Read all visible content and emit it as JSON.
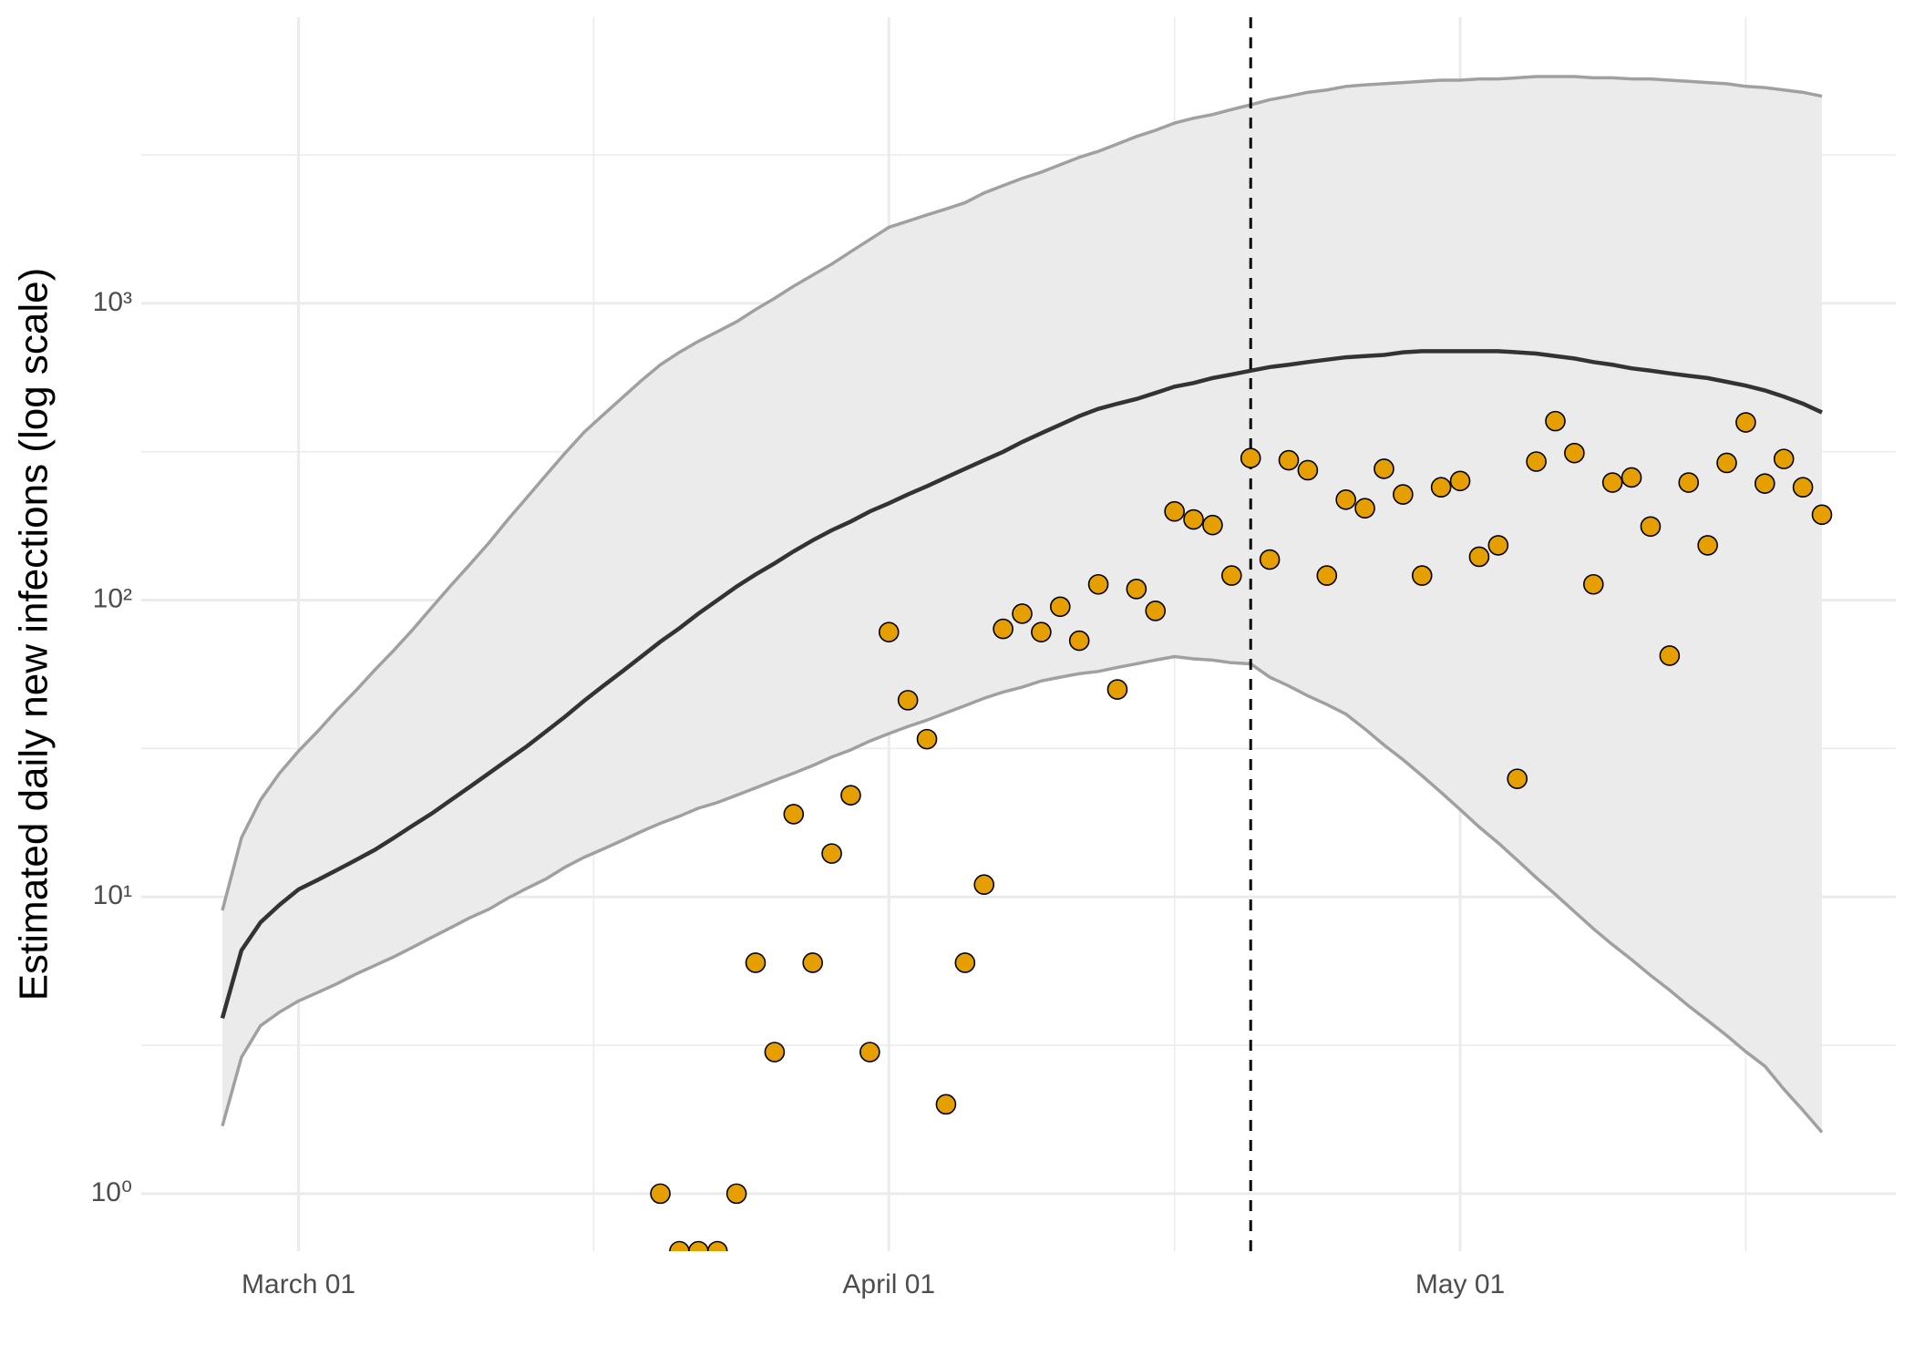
{
  "chart_data": {
    "type": "line",
    "y_label": "Estimated daily new infections (log scale)",
    "log_y": true,
    "grid": true,
    "ylim": [
      0.64,
      9200
    ],
    "yticks": [
      {
        "value": 1,
        "label": "10⁰"
      },
      {
        "value": 10,
        "label": "10¹"
      },
      {
        "value": 100,
        "label": "10²"
      },
      {
        "value": 1000,
        "label": "10³"
      }
    ],
    "xticks": [
      {
        "value": "03-01",
        "label": "March 01"
      },
      {
        "value": "04-01",
        "label": "April 01"
      },
      {
        "value": "05-01",
        "label": "May 01"
      }
    ],
    "vline_x": "04-20",
    "x": [
      "02-26",
      "02-27",
      "02-28",
      "02-29",
      "03-01",
      "03-02",
      "03-03",
      "03-04",
      "03-05",
      "03-06",
      "03-07",
      "03-08",
      "03-09",
      "03-10",
      "03-11",
      "03-12",
      "03-13",
      "03-14",
      "03-15",
      "03-16",
      "03-17",
      "03-18",
      "03-19",
      "03-20",
      "03-21",
      "03-22",
      "03-23",
      "03-24",
      "03-25",
      "03-26",
      "03-27",
      "03-28",
      "03-29",
      "03-30",
      "03-31",
      "04-01",
      "04-02",
      "04-03",
      "04-04",
      "04-05",
      "04-06",
      "04-07",
      "04-08",
      "04-09",
      "04-10",
      "04-11",
      "04-12",
      "04-13",
      "04-14",
      "04-15",
      "04-16",
      "04-17",
      "04-18",
      "04-19",
      "04-20",
      "04-21",
      "04-22",
      "04-23",
      "04-24",
      "04-25",
      "04-26",
      "04-27",
      "04-28",
      "04-29",
      "04-30",
      "05-01",
      "05-02",
      "05-03",
      "05-04",
      "05-05",
      "05-06",
      "05-07",
      "05-08",
      "05-09",
      "05-10",
      "05-11",
      "05-12",
      "05-13",
      "05-14",
      "05-15",
      "05-16",
      "05-17",
      "05-18",
      "05-19",
      "05-20"
    ],
    "band": {
      "fill": "#ebebeb",
      "line_color": "#a0a0a0",
      "upper": [
        9.0,
        15.8,
        21.2,
        26.1,
        31.0,
        36.1,
        42.5,
        49.5,
        58.1,
        67.7,
        79.6,
        94.5,
        112,
        132,
        156,
        187,
        222,
        264,
        313,
        368,
        421,
        481,
        549,
        621,
        684,
        745,
        803,
        867,
        953,
        1040,
        1143,
        1245,
        1356,
        1493,
        1641,
        1803,
        1892,
        1986,
        2080,
        2183,
        2355,
        2494,
        2637,
        2767,
        2931,
        3105,
        3252,
        3444,
        3648,
        3828,
        4049,
        4206,
        4327,
        4498,
        4667,
        4853,
        4989,
        5140,
        5236,
        5383,
        5445,
        5495,
        5546,
        5598,
        5649,
        5649,
        5702,
        5702,
        5754,
        5808,
        5808,
        5808,
        5754,
        5754,
        5702,
        5702,
        5649,
        5598,
        5546,
        5495,
        5383,
        5333,
        5236,
        5140,
        4989
      ],
      "lower": [
        1.69,
        2.88,
        3.68,
        4.09,
        4.46,
        4.76,
        5.09,
        5.49,
        5.87,
        6.28,
        6.77,
        7.31,
        7.88,
        8.51,
        9.09,
        9.91,
        10.7,
        11.5,
        12.6,
        13.6,
        14.5,
        15.5,
        16.6,
        17.7,
        18.7,
        19.9,
        20.8,
        22.0,
        23.3,
        24.7,
        26.1,
        27.7,
        29.6,
        31.3,
        33.5,
        35.5,
        37.5,
        39.4,
        41.7,
        44.1,
        46.7,
        49.0,
        50.9,
        53.4,
        55.0,
        56.5,
        57.5,
        59.3,
        61.0,
        62.8,
        64.5,
        63.4,
        62.8,
        61.5,
        61.0,
        55.0,
        51.4,
        47.6,
        44.5,
        41.3,
        36.8,
        32.5,
        29.0,
        25.6,
        22.5,
        19.7,
        17.2,
        15.2,
        13.3,
        11.6,
        10.2,
        8.92,
        7.81,
        6.9,
        6.15,
        5.44,
        4.85,
        4.29,
        3.83,
        3.41,
        3.01,
        2.69,
        2.25,
        1.91,
        1.61
      ]
    },
    "line": {
      "color": "#333333",
      "values": [
        3.9,
        6.6,
        8.2,
        9.4,
        10.6,
        11.4,
        12.3,
        13.3,
        14.4,
        15.8,
        17.4,
        19.1,
        21.2,
        23.5,
        26.1,
        29.0,
        32.2,
        36.1,
        40.5,
        45.8,
        51.4,
        57.5,
        64.5,
        72.4,
        80.4,
        90.1,
        100,
        111,
        122,
        133,
        146,
        159,
        172,
        184,
        199,
        212,
        227,
        242,
        259,
        277,
        296,
        316,
        341,
        365,
        390,
        417,
        441,
        459,
        476,
        499,
        524,
        539,
        560,
        576,
        593,
        610,
        621,
        634,
        646,
        658,
        664,
        670,
        684,
        690,
        690,
        690,
        690,
        690,
        684,
        677,
        664,
        652,
        634,
        621,
        604,
        593,
        581,
        570,
        560,
        544,
        528,
        509,
        485,
        459,
        429
      ]
    },
    "points": {
      "color": "#e69f00",
      "edge_color": "#000000",
      "values": [
        null,
        null,
        null,
        null,
        null,
        null,
        null,
        null,
        null,
        null,
        null,
        null,
        null,
        null,
        null,
        null,
        null,
        null,
        null,
        null,
        null,
        null,
        null,
        1,
        0.64,
        0.64,
        0.64,
        1,
        6,
        3,
        19,
        6,
        14,
        22,
        3,
        78,
        46,
        34,
        2,
        6,
        11,
        80,
        90,
        78,
        95,
        73,
        113,
        50,
        109,
        92,
        199,
        187,
        179,
        121,
        301,
        137,
        296,
        274,
        121,
        218,
        204,
        277,
        227,
        121,
        240,
        252,
        140,
        153,
        25,
        293,
        401,
        313,
        113,
        249,
        259,
        177,
        65,
        249,
        153,
        290,
        397,
        247,
        299,
        240,
        194
      ]
    }
  }
}
